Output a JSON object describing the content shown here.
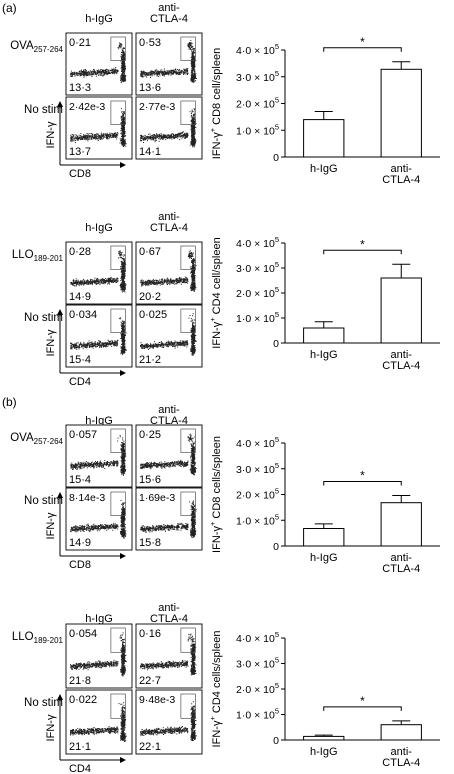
{
  "panel_labels": [
    "(a)",
    "(b)"
  ],
  "condition_labels": {
    "h_igg": "h-IgG",
    "anti_ctla4_line1": "anti-",
    "anti_ctla4_line2": "CTLA-4"
  },
  "stim_labels": {
    "ova": "OVA",
    "ova_sub": "257-264",
    "llo": "LLO",
    "llo_sub": "189-201",
    "no_stim": "No stim"
  },
  "axis_labels": {
    "ifn": "IFN-γ",
    "cd8": "CD8",
    "cd4": "CD4"
  },
  "flow_blocks": [
    {
      "id": "a-cd8",
      "stim_key": "ova",
      "xmarker": "cd8",
      "rows": [
        {
          "stim": "OVA257-264",
          "cells": [
            {
              "upper": "0·21",
              "lower": "13·3",
              "upper_frac": 0.0021,
              "lower_frac": 0.133
            },
            {
              "upper": "0·53",
              "lower": "13·6",
              "upper_frac": 0.0053,
              "lower_frac": 0.136
            }
          ]
        },
        {
          "stim": "No stim",
          "cells": [
            {
              "upper": "2·42e-3",
              "lower": "13·7",
              "upper_frac": 2.42e-05,
              "lower_frac": 0.137
            },
            {
              "upper": "2·77e-3",
              "lower": "14·1",
              "upper_frac": 2.77e-05,
              "lower_frac": 0.141
            }
          ]
        }
      ]
    },
    {
      "id": "a-cd4",
      "stim_key": "llo",
      "xmarker": "cd4",
      "rows": [
        {
          "stim": "LLO189-201",
          "cells": [
            {
              "upper": "0·28",
              "lower": "14·9",
              "upper_frac": 0.0028,
              "lower_frac": 0.149
            },
            {
              "upper": "0·67",
              "lower": "20·2",
              "upper_frac": 0.0067,
              "lower_frac": 0.202
            }
          ]
        },
        {
          "stim": "No stim",
          "cells": [
            {
              "upper": "0·034",
              "lower": "15·4",
              "upper_frac": 0.00034,
              "lower_frac": 0.154
            },
            {
              "upper": "0·025",
              "lower": "21·2",
              "upper_frac": 0.00025,
              "lower_frac": 0.212
            }
          ]
        }
      ]
    },
    {
      "id": "b-cd8",
      "stim_key": "ova",
      "xmarker": "cd8",
      "rows": [
        {
          "stim": "OVA257-264",
          "cells": [
            {
              "upper": "0·057",
              "lower": "15·4",
              "upper_frac": 0.00057,
              "lower_frac": 0.154
            },
            {
              "upper": "0·25",
              "lower": "15·6",
              "upper_frac": 0.0025,
              "lower_frac": 0.156
            }
          ]
        },
        {
          "stim": "No stim",
          "cells": [
            {
              "upper": "8·14e-3",
              "lower": "14·9",
              "upper_frac": 8.14e-05,
              "lower_frac": 0.149
            },
            {
              "upper": "1·69e-3",
              "lower": "15·8",
              "upper_frac": 1.69e-05,
              "lower_frac": 0.158
            }
          ]
        }
      ]
    },
    {
      "id": "b-cd4",
      "stim_key": "llo",
      "xmarker": "cd4",
      "rows": [
        {
          "stim": "LLO189-201",
          "cells": [
            {
              "upper": "0·054",
              "lower": "21·8",
              "upper_frac": 0.00054,
              "lower_frac": 0.218
            },
            {
              "upper": "0·16",
              "lower": "22·7",
              "upper_frac": 0.0016,
              "lower_frac": 0.227
            }
          ]
        },
        {
          "stim": "No stim",
          "cells": [
            {
              "upper": "0·022",
              "lower": "21·1",
              "upper_frac": 0.00022,
              "lower_frac": 0.211
            },
            {
              "upper": "9·48e-3",
              "lower": "22·1",
              "upper_frac": 9.48e-05,
              "lower_frac": 0.221
            }
          ]
        }
      ]
    }
  ],
  "chart_data": [
    {
      "type": "bar",
      "panel": "(a)",
      "categories": [
        "h-IgG",
        "anti-CTLA-4"
      ],
      "category_lines": [
        [
          "h-IgG"
        ],
        [
          "anti-",
          "CTLA-4"
        ]
      ],
      "values": [
        140000,
        328000
      ],
      "errors": [
        30000,
        28000
      ],
      "ylabel": "IFN-γ+ CD8 cell/spleen",
      "ylim": [
        0,
        400000
      ],
      "yticks": [
        0,
        100000,
        200000,
        300000,
        400000
      ],
      "ytick_labels": [
        {
          "m": "0",
          "e": ""
        },
        {
          "m": "1·0 × 10",
          "e": "5"
        },
        {
          "m": "2·0 × 10",
          "e": "5"
        },
        {
          "m": "3·0 × 10",
          "e": "5"
        },
        {
          "m": "4·0 × 10",
          "e": "5"
        }
      ],
      "significance": "*"
    },
    {
      "type": "bar",
      "panel": "(a)",
      "categories": [
        "h-IgG",
        "anti-CTLA-4"
      ],
      "category_lines": [
        [
          "h-IgG"
        ],
        [
          "anti-",
          "CTLA-4"
        ]
      ],
      "values": [
        60000,
        260000
      ],
      "errors": [
        25000,
        55000
      ],
      "ylabel": "IFN-γ+ CD4 cell/spleen",
      "ylim": [
        0,
        400000
      ],
      "yticks": [
        0,
        100000,
        200000,
        300000,
        400000
      ],
      "ytick_labels": [
        {
          "m": "0",
          "e": ""
        },
        {
          "m": "1·0 × 10",
          "e": "5"
        },
        {
          "m": "2·0 × 10",
          "e": "5"
        },
        {
          "m": "3·0 × 10",
          "e": "5"
        },
        {
          "m": "4·0 × 10",
          "e": "5"
        }
      ],
      "significance": "*"
    },
    {
      "type": "bar",
      "panel": "(b)",
      "categories": [
        "h-IgG",
        "anti-CTLA-4"
      ],
      "category_lines": [
        [
          "h-IgG"
        ],
        [
          "anti-",
          "CTLA-4"
        ]
      ],
      "values": [
        68000,
        168000
      ],
      "errors": [
        18000,
        28000
      ],
      "ylabel": "IFN-γ+ CD8 cells/spleen",
      "ylim": [
        0,
        400000
      ],
      "yticks": [
        0,
        100000,
        200000,
        300000,
        400000
      ],
      "ytick_labels": [
        {
          "m": "0",
          "e": ""
        },
        {
          "m": "1·0 × 10",
          "e": "5"
        },
        {
          "m": "2·0 × 10",
          "e": "5"
        },
        {
          "m": "3·0 × 10",
          "e": "5"
        },
        {
          "m": "4·0 × 10",
          "e": "5"
        }
      ],
      "significance": "*"
    },
    {
      "type": "bar",
      "panel": "(b)",
      "categories": [
        "h-IgG",
        "anti-CTLA-4"
      ],
      "category_lines": [
        [
          "h-IgG"
        ],
        [
          "anti-",
          "CTLA-4"
        ]
      ],
      "values": [
        14000,
        60000
      ],
      "errors": [
        5000,
        15000
      ],
      "ylabel": "IFN-γ+ CD4 cells/spleen",
      "ylim": [
        0,
        400000
      ],
      "yticks": [
        0,
        100000,
        200000,
        300000,
        400000
      ],
      "ytick_labels": [
        {
          "m": "0",
          "e": ""
        },
        {
          "m": "1·0 × 10",
          "e": "5"
        },
        {
          "m": "2·0 × 10",
          "e": "5"
        },
        {
          "m": "3·0 × 10",
          "e": "5"
        },
        {
          "m": "4·0 × 10",
          "e": "5"
        }
      ],
      "significance": "*"
    }
  ]
}
